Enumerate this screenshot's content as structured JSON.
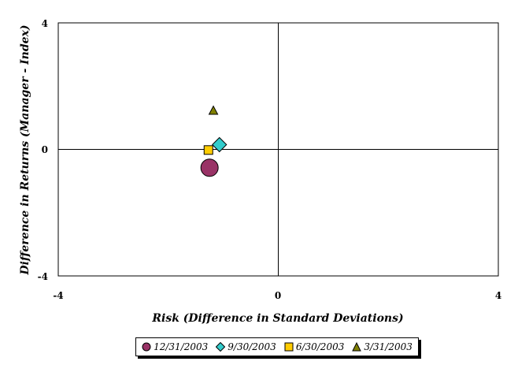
{
  "chart_data": {
    "type": "scatter",
    "title": "",
    "xlabel": "Risk (Difference in Standard Deviations)",
    "ylabel": "Difference in Returns (Manager - Index)",
    "xlim": [
      -4,
      4
    ],
    "ylim": [
      -4,
      4
    ],
    "x_ticks": [
      "-4",
      "0",
      "4"
    ],
    "y_ticks": [
      "-4",
      "0",
      "4"
    ],
    "grid": false,
    "legend_placement": "bottom",
    "series": [
      {
        "name": "12/31/2003",
        "marker": "circle",
        "color": "#993366",
        "x": [
          -1.25
        ],
        "y": [
          -0.58
        ]
      },
      {
        "name": "9/30/2003",
        "marker": "diamond",
        "color": "#33CCCC",
        "x": [
          -1.07
        ],
        "y": [
          0.15
        ]
      },
      {
        "name": "6/30/2003",
        "marker": "square",
        "color": "#FFCC00",
        "x": [
          -1.27
        ],
        "y": [
          -0.02
        ]
      },
      {
        "name": "3/31/2003",
        "marker": "triangle",
        "color": "#808000",
        "x": [
          -1.18
        ],
        "y": [
          1.22
        ]
      }
    ]
  }
}
